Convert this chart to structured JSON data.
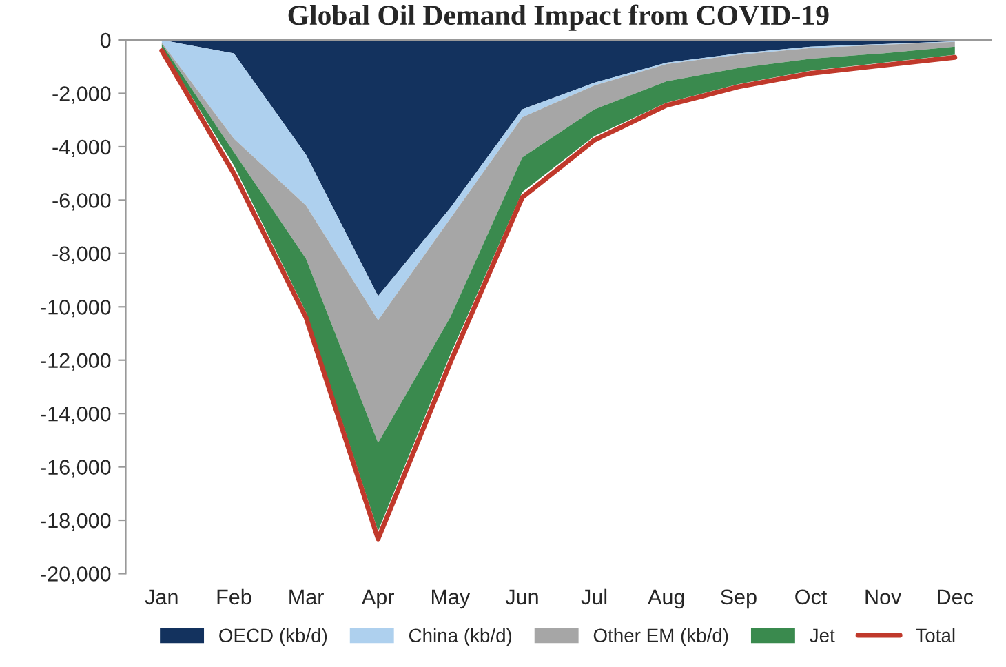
{
  "chart_data": {
    "type": "area",
    "title": "Global Oil Demand Impact from COVID-19",
    "categories": [
      "Jan",
      "Feb",
      "Mar",
      "Apr",
      "May",
      "Jun",
      "Jul",
      "Aug",
      "Sep",
      "Oct",
      "Nov",
      "Dec"
    ],
    "stacked": true,
    "series": [
      {
        "name": "OECD (kb/d)",
        "color": "#13325e",
        "values": [
          0,
          -500,
          -4300,
          -9600,
          -6300,
          -2600,
          -1600,
          -850,
          -500,
          -250,
          -150,
          -50
        ]
      },
      {
        "name": "China (kb/d)",
        "color": "#aed0ee",
        "values": [
          -100,
          -3200,
          -1900,
          -900,
          -400,
          -300,
          -100,
          -50,
          -50,
          -50,
          -30,
          -20
        ]
      },
      {
        "name": "Other EM (kb/d)",
        "color": "#a6a6a6",
        "values": [
          -50,
          -500,
          -2000,
          -4600,
          -3700,
          -1500,
          -900,
          -650,
          -500,
          -400,
          -320,
          -180
        ]
      },
      {
        "name": "Jet",
        "color": "#3a8a4e",
        "values": [
          -150,
          -500,
          -2000,
          -3300,
          -1400,
          -1300,
          -1000,
          -800,
          -600,
          -450,
          -350,
          -300
        ]
      },
      {
        "name": "Total",
        "type": "line",
        "color": "#c0392b",
        "values": [
          -400,
          -5000,
          -10400,
          -18700,
          -12100,
          -5900,
          -3750,
          -2450,
          -1750,
          -1250,
          -950,
          -650
        ]
      }
    ],
    "ylim": [
      -20000,
      0
    ],
    "yticks": [
      {
        "value": -20000,
        "label": "-20,000"
      },
      {
        "value": -18000,
        "label": "-18,000"
      },
      {
        "value": -16000,
        "label": "-16,000"
      },
      {
        "value": -14000,
        "label": "-14,000"
      },
      {
        "value": -12000,
        "label": "-12,000"
      },
      {
        "value": -10000,
        "label": "-10,000"
      },
      {
        "value": -8000,
        "label": "-8,000"
      },
      {
        "value": -6000,
        "label": "-6,000"
      },
      {
        "value": -4000,
        "label": "-4,000"
      },
      {
        "value": -2000,
        "label": "-2,000"
      },
      0
    ],
    "grid": false,
    "legend": "bottom"
  }
}
